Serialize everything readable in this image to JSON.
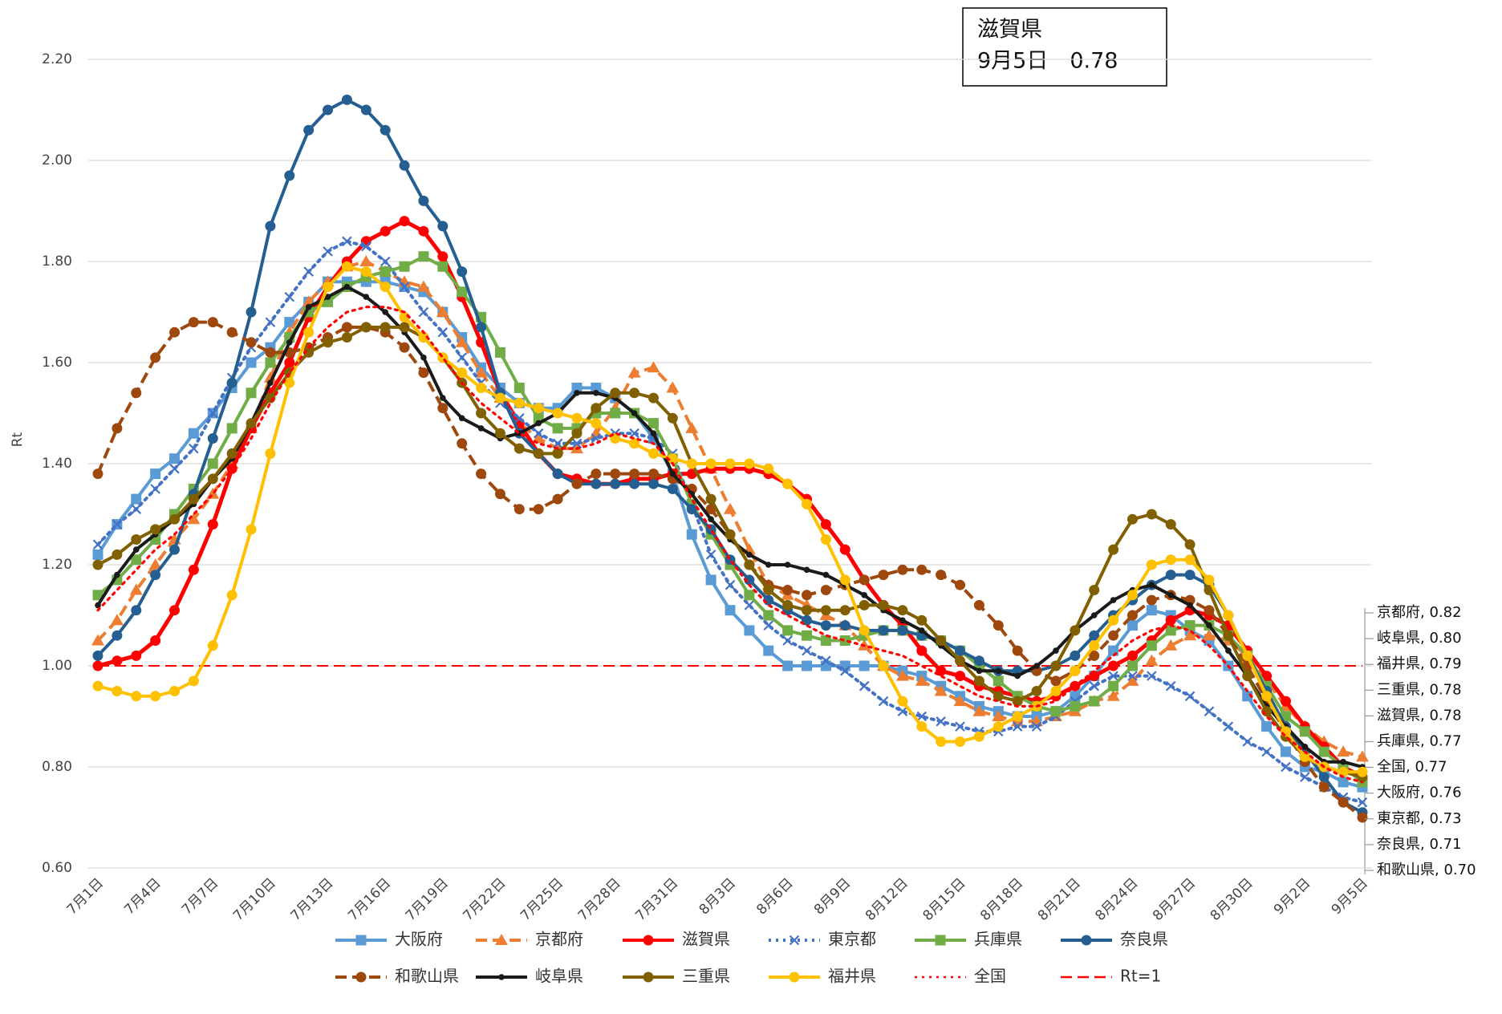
{
  "chart_data": {
    "type": "line",
    "y_label": "Rt",
    "annotation": [
      "滋賀県",
      "9月5日　0.78"
    ],
    "categories": [
      "7月1日",
      null,
      null,
      "7月4日",
      null,
      null,
      "7月7日",
      null,
      null,
      "7月10日",
      null,
      null,
      "7月13日",
      null,
      null,
      "7月16日",
      null,
      null,
      "7月19日",
      null,
      null,
      "7月22日",
      null,
      null,
      "7月25日",
      null,
      null,
      "7月28日",
      null,
      null,
      "7月31日",
      null,
      null,
      "8月3日",
      null,
      null,
      "8月6日",
      null,
      null,
      "8月9日",
      null,
      null,
      "8月12日",
      null,
      null,
      "8月15日",
      null,
      null,
      "8月18日",
      null,
      null,
      "8月21日",
      null,
      null,
      "8月24日",
      null,
      null,
      "8月27日",
      null,
      null,
      "8月30日",
      null,
      null,
      "9月2日",
      null,
      null,
      "9月5日"
    ],
    "ylim": [
      0.6,
      2.2
    ],
    "yticks": [
      {
        "value": 0.6,
        "label": "0.60"
      },
      {
        "value": 0.8,
        "label": "0.80"
      },
      {
        "value": 1.0,
        "label": "1.00"
      },
      {
        "value": 1.2,
        "label": "1.20"
      },
      {
        "value": 1.4,
        "label": "1.40"
      },
      {
        "value": 1.6,
        "label": "1.60"
      },
      {
        "value": 1.8,
        "label": "1.80"
      },
      {
        "value": 2.0,
        "label": "2.00"
      },
      {
        "value": 2.2,
        "label": "2.20"
      }
    ],
    "grid": true,
    "series": [
      {
        "name": "大阪府",
        "color": "#5b9bd5",
        "marker": "square",
        "dash": "solid",
        "values": [
          1.22,
          1.28,
          1.33,
          1.38,
          1.41,
          1.46,
          1.5,
          1.55,
          1.6,
          1.63,
          1.68,
          1.72,
          1.76,
          1.76,
          1.76,
          1.76,
          1.75,
          1.74,
          1.7,
          1.65,
          1.59,
          1.55,
          1.52,
          1.51,
          1.51,
          1.55,
          1.55,
          1.53,
          1.5,
          1.45,
          1.38,
          1.26,
          1.17,
          1.11,
          1.07,
          1.03,
          1.0,
          1.0,
          1.0,
          1.0,
          1.0,
          1.0,
          0.99,
          0.98,
          0.96,
          0.94,
          0.92,
          0.91,
          0.9,
          0.9,
          0.91,
          0.94,
          0.98,
          1.03,
          1.08,
          1.11,
          1.1,
          1.07,
          1.05,
          1.0,
          0.94,
          0.88,
          0.83,
          0.8,
          0.79,
          0.77,
          0.76
        ]
      },
      {
        "name": "京都府",
        "color": "#ed7d31",
        "marker": "triangle",
        "dash": "dashed",
        "values": [
          1.05,
          1.09,
          1.15,
          1.2,
          1.25,
          1.29,
          1.34,
          1.4,
          1.47,
          1.57,
          1.66,
          1.72,
          1.76,
          1.79,
          1.8,
          1.78,
          1.76,
          1.75,
          1.7,
          1.64,
          1.58,
          1.53,
          1.48,
          1.45,
          1.43,
          1.43,
          1.46,
          1.51,
          1.58,
          1.59,
          1.55,
          1.47,
          1.39,
          1.31,
          1.23,
          1.16,
          1.14,
          1.12,
          1.1,
          1.08,
          1.04,
          1.0,
          0.98,
          0.97,
          0.95,
          0.93,
          0.91,
          0.9,
          0.89,
          0.89,
          0.9,
          0.91,
          0.93,
          0.94,
          0.97,
          1.01,
          1.04,
          1.06,
          1.06,
          1.05,
          1.02,
          0.97,
          0.92,
          0.88,
          0.85,
          0.83,
          0.82
        ]
      },
      {
        "name": "滋賀県",
        "color": "#ff0000",
        "marker": "circle",
        "dash": "solid",
        "values": [
          1.0,
          1.01,
          1.02,
          1.05,
          1.11,
          1.19,
          1.28,
          1.39,
          1.47,
          1.54,
          1.6,
          1.69,
          1.75,
          1.8,
          1.84,
          1.86,
          1.88,
          1.86,
          1.81,
          1.73,
          1.64,
          1.54,
          1.48,
          1.42,
          1.38,
          1.37,
          1.36,
          1.36,
          1.37,
          1.37,
          1.38,
          1.38,
          1.39,
          1.39,
          1.39,
          1.38,
          1.36,
          1.33,
          1.28,
          1.23,
          1.17,
          1.12,
          1.08,
          1.03,
          0.99,
          0.98,
          0.96,
          0.95,
          0.94,
          0.93,
          0.94,
          0.96,
          0.98,
          1.0,
          1.02,
          1.05,
          1.09,
          1.11,
          1.1,
          1.08,
          1.03,
          0.98,
          0.93,
          0.88,
          0.84,
          0.8,
          0.78
        ]
      },
      {
        "name": "東京都",
        "color": "#4472c4",
        "marker": "x",
        "dash": "dotted",
        "values": [
          1.24,
          1.28,
          1.31,
          1.35,
          1.39,
          1.43,
          1.5,
          1.57,
          1.63,
          1.68,
          1.73,
          1.78,
          1.82,
          1.84,
          1.83,
          1.8,
          1.75,
          1.7,
          1.66,
          1.61,
          1.56,
          1.52,
          1.49,
          1.46,
          1.44,
          1.44,
          1.45,
          1.46,
          1.46,
          1.45,
          1.42,
          1.32,
          1.22,
          1.16,
          1.12,
          1.08,
          1.05,
          1.03,
          1.01,
          0.99,
          0.96,
          0.93,
          0.91,
          0.9,
          0.89,
          0.88,
          0.87,
          0.87,
          0.88,
          0.88,
          0.9,
          0.93,
          0.96,
          0.98,
          0.98,
          0.98,
          0.96,
          0.94,
          0.91,
          0.88,
          0.85,
          0.83,
          0.8,
          0.78,
          0.76,
          0.74,
          0.73
        ]
      },
      {
        "name": "兵庫県",
        "color": "#70ad47",
        "marker": "square",
        "dash": "solid",
        "values": [
          1.14,
          1.17,
          1.21,
          1.25,
          1.3,
          1.35,
          1.4,
          1.47,
          1.54,
          1.6,
          1.65,
          1.7,
          1.72,
          1.75,
          1.77,
          1.78,
          1.79,
          1.81,
          1.79,
          1.74,
          1.69,
          1.62,
          1.55,
          1.49,
          1.47,
          1.47,
          1.5,
          1.5,
          1.5,
          1.48,
          1.41,
          1.32,
          1.26,
          1.2,
          1.14,
          1.1,
          1.07,
          1.06,
          1.05,
          1.05,
          1.06,
          1.07,
          1.07,
          1.06,
          1.05,
          1.03,
          1.0,
          0.97,
          0.94,
          0.92,
          0.91,
          0.92,
          0.93,
          0.96,
          1.0,
          1.04,
          1.07,
          1.08,
          1.08,
          1.06,
          1.02,
          0.96,
          0.9,
          0.87,
          0.83,
          0.8,
          0.77
        ]
      },
      {
        "name": "奈良県",
        "color": "#255e91",
        "marker": "circle",
        "dash": "solid",
        "values": [
          1.02,
          1.06,
          1.11,
          1.18,
          1.23,
          1.34,
          1.45,
          1.56,
          1.7,
          1.87,
          1.97,
          2.06,
          2.1,
          2.12,
          2.1,
          2.06,
          1.99,
          1.92,
          1.87,
          1.78,
          1.67,
          1.54,
          1.46,
          1.42,
          1.38,
          1.36,
          1.36,
          1.36,
          1.36,
          1.36,
          1.35,
          1.31,
          1.27,
          1.21,
          1.17,
          1.13,
          1.11,
          1.09,
          1.08,
          1.08,
          1.07,
          1.07,
          1.07,
          1.06,
          1.05,
          1.03,
          1.01,
          0.99,
          0.99,
          0.99,
          1.0,
          1.02,
          1.06,
          1.1,
          1.13,
          1.16,
          1.18,
          1.18,
          1.16,
          1.1,
          1.02,
          0.95,
          0.88,
          0.83,
          0.78,
          0.73,
          0.71
        ]
      },
      {
        "name": "和歌山県",
        "color": "#9e480e",
        "marker": "circle",
        "dash": "dashed",
        "values": [
          1.38,
          1.47,
          1.54,
          1.61,
          1.66,
          1.68,
          1.68,
          1.66,
          1.64,
          1.62,
          1.62,
          1.63,
          1.65,
          1.67,
          1.67,
          1.66,
          1.63,
          1.58,
          1.51,
          1.44,
          1.38,
          1.34,
          1.31,
          1.31,
          1.33,
          1.36,
          1.38,
          1.38,
          1.38,
          1.38,
          1.37,
          1.35,
          1.31,
          1.26,
          1.2,
          1.16,
          1.15,
          1.14,
          1.15,
          1.16,
          1.17,
          1.18,
          1.19,
          1.19,
          1.18,
          1.16,
          1.12,
          1.08,
          1.03,
          0.99,
          0.97,
          0.99,
          1.02,
          1.06,
          1.1,
          1.13,
          1.14,
          1.13,
          1.11,
          1.06,
          1.0,
          0.93,
          0.87,
          0.81,
          0.76,
          0.73,
          0.7
        ]
      },
      {
        "name": "岐阜県",
        "color": "#1a1a1a",
        "marker": "dot",
        "dash": "solid",
        "values": [
          1.12,
          1.18,
          1.23,
          1.26,
          1.29,
          1.32,
          1.37,
          1.41,
          1.48,
          1.56,
          1.64,
          1.71,
          1.73,
          1.75,
          1.73,
          1.7,
          1.66,
          1.61,
          1.53,
          1.49,
          1.47,
          1.45,
          1.46,
          1.48,
          1.5,
          1.54,
          1.54,
          1.53,
          1.5,
          1.46,
          1.38,
          1.34,
          1.29,
          1.25,
          1.22,
          1.2,
          1.2,
          1.19,
          1.18,
          1.16,
          1.14,
          1.11,
          1.09,
          1.07,
          1.04,
          1.01,
          0.99,
          0.99,
          0.98,
          1.0,
          1.03,
          1.07,
          1.1,
          1.13,
          1.15,
          1.16,
          1.14,
          1.12,
          1.08,
          1.03,
          0.98,
          0.92,
          0.88,
          0.84,
          0.81,
          0.81,
          0.8
        ]
      },
      {
        "name": "三重県",
        "color": "#806000",
        "marker": "circle",
        "dash": "solid",
        "values": [
          1.2,
          1.22,
          1.25,
          1.27,
          1.29,
          1.33,
          1.37,
          1.42,
          1.48,
          1.53,
          1.58,
          1.62,
          1.64,
          1.65,
          1.67,
          1.67,
          1.67,
          1.65,
          1.61,
          1.56,
          1.5,
          1.46,
          1.43,
          1.42,
          1.42,
          1.46,
          1.51,
          1.54,
          1.54,
          1.53,
          1.49,
          1.4,
          1.33,
          1.26,
          1.2,
          1.15,
          1.12,
          1.11,
          1.11,
          1.11,
          1.12,
          1.12,
          1.11,
          1.09,
          1.05,
          1.01,
          0.97,
          0.94,
          0.93,
          0.95,
          1.0,
          1.07,
          1.15,
          1.23,
          1.29,
          1.3,
          1.28,
          1.24,
          1.15,
          1.06,
          0.98,
          0.91,
          0.86,
          0.82,
          0.8,
          0.79,
          0.78
        ]
      },
      {
        "name": "福井県",
        "color": "#ffc000",
        "marker": "circle",
        "dash": "solid",
        "values": [
          0.96,
          0.95,
          0.94,
          0.94,
          0.95,
          0.97,
          1.04,
          1.14,
          1.27,
          1.42,
          1.56,
          1.66,
          1.75,
          1.79,
          1.78,
          1.75,
          1.69,
          1.65,
          1.61,
          1.58,
          1.55,
          1.53,
          1.52,
          1.51,
          1.5,
          1.49,
          1.48,
          1.45,
          1.44,
          1.42,
          1.41,
          1.4,
          1.4,
          1.4,
          1.4,
          1.39,
          1.36,
          1.32,
          1.25,
          1.17,
          1.07,
          1.0,
          0.93,
          0.88,
          0.85,
          0.85,
          0.86,
          0.88,
          0.9,
          0.92,
          0.95,
          0.99,
          1.04,
          1.09,
          1.14,
          1.2,
          1.21,
          1.21,
          1.17,
          1.1,
          1.02,
          0.94,
          0.87,
          0.82,
          0.8,
          0.79,
          0.79
        ]
      },
      {
        "name": "全国",
        "color": "#ff0000",
        "marker": "none",
        "dash": "dotted",
        "values": [
          1.11,
          1.15,
          1.19,
          1.23,
          1.26,
          1.3,
          1.34,
          1.39,
          1.45,
          1.52,
          1.58,
          1.63,
          1.67,
          1.7,
          1.71,
          1.71,
          1.7,
          1.66,
          1.61,
          1.56,
          1.52,
          1.49,
          1.46,
          1.44,
          1.43,
          1.43,
          1.44,
          1.46,
          1.45,
          1.44,
          1.4,
          1.33,
          1.27,
          1.21,
          1.16,
          1.12,
          1.1,
          1.08,
          1.06,
          1.05,
          1.04,
          1.03,
          1.02,
          1.0,
          0.98,
          0.96,
          0.94,
          0.93,
          0.92,
          0.92,
          0.93,
          0.96,
          0.99,
          1.02,
          1.05,
          1.07,
          1.08,
          1.07,
          1.04,
          1.0,
          0.95,
          0.9,
          0.86,
          0.83,
          0.8,
          0.78,
          0.77
        ]
      }
    ],
    "reference_line": {
      "name": "Rt=1",
      "value": 1,
      "color": "#ff0000",
      "dash": "dashed"
    },
    "end_labels": [
      "京都府, 0.82",
      "岐阜県, 0.80",
      "福井県, 0.79",
      "三重県, 0.78",
      "滋賀県, 0.78",
      "兵庫県, 0.77",
      "全国, 0.77",
      "大阪府, 0.76",
      "東京都, 0.73",
      "奈良県, 0.71",
      "和歌山県, 0.70"
    ]
  }
}
